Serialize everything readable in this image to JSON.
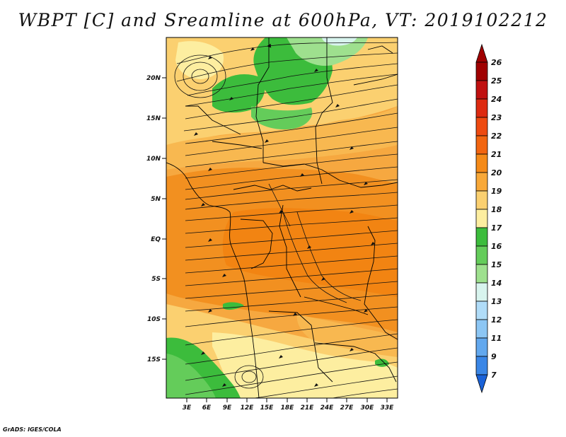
{
  "title": "WBPT [C] and Sreamline at 600hPa, VT: 2019102212",
  "credit": "GrADS: IGES/COLA",
  "map": {
    "lat_labels": [
      "20N",
      "15N",
      "10N",
      "5N",
      "EQ",
      "5S",
      "10S",
      "15S"
    ],
    "lon_labels": [
      "3E",
      "6E",
      "9E",
      "12E",
      "15E",
      "18E",
      "21E",
      "24E",
      "27E",
      "30E",
      "33E"
    ]
  },
  "colorbar": {
    "labels": [
      "26",
      "25",
      "24",
      "23",
      "22",
      "21",
      "20",
      "19",
      "18",
      "17",
      "16",
      "15",
      "14",
      "13",
      "12",
      "11",
      "9",
      "7"
    ],
    "colors": [
      "#a00000",
      "#c01010",
      "#dd2a10",
      "#ee4a10",
      "#f26510",
      "#f58a18",
      "#f8a838",
      "#fbd070",
      "#fdeea0",
      "#3cbc3c",
      "#64cc5a",
      "#9ee08e",
      "#d8f4ee",
      "#b0dcf8",
      "#8cc6f4",
      "#62a8ee",
      "#3a86e6",
      "#1a62d8"
    ]
  }
}
